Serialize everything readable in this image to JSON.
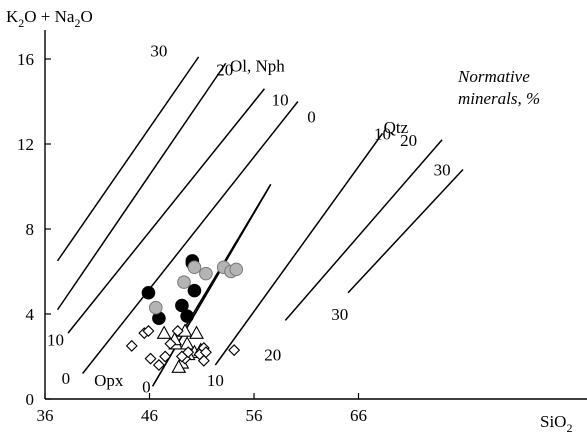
{
  "chart_data": {
    "type": "scatter",
    "title": "",
    "xlabel": "SiO",
    "xlabel_sub": "2",
    "ylabel_parts": [
      "K",
      "2",
      "O + Na",
      "2",
      "O"
    ],
    "xlim": [
      36,
      76
    ],
    "ylim": [
      0,
      17.5
    ],
    "x_ticks": [
      36,
      46,
      56,
      66
    ],
    "y_ticks": [
      0,
      4,
      8,
      12,
      16
    ],
    "grid": false,
    "legend": {
      "title_lines": [
        "Normative",
        "minerals, %"
      ],
      "placement": "top-right"
    },
    "field_labels": [
      {
        "text": "Ol, Nph",
        "x": 53.7,
        "y": 15.7
      },
      {
        "text": "Qtz",
        "x": 68.4,
        "y": 12.8
      },
      {
        "text": "Opx",
        "x": 40.7,
        "y": 0.9
      }
    ],
    "isolines": [
      {
        "label": "30",
        "group": "Ol-Nph",
        "from": [
          37.2,
          6.5
        ],
        "to": [
          50.7,
          16.1
        ],
        "label_at": [
          46.9,
          16.4
        ]
      },
      {
        "label": "20",
        "group": "Ol-Nph",
        "from": [
          37.2,
          4.2
        ],
        "to": [
          53.3,
          15.8
        ],
        "label_at": [
          53.2,
          15.5
        ]
      },
      {
        "label": "10",
        "group": "Ol-Nph",
        "from": [
          38.2,
          3.1
        ],
        "to": [
          57.0,
          14.6
        ],
        "label_at": [
          58.5,
          14.1
        ]
      },
      {
        "label": "0",
        "group": "Ol-Nph",
        "from": [
          39.6,
          1.2
        ],
        "to": [
          60.2,
          14.0
        ],
        "label_at": [
          61.5,
          13.3
        ]
      },
      {
        "label": "0",
        "group": "Opx-Qtz",
        "from": [
          46.3,
          0.6
        ],
        "to": [
          57.6,
          10.1
        ],
        "label_at": [
          45.7,
          0.6
        ]
      },
      {
        "label": "10",
        "group": "Opx-Qtz",
        "from": [
          52.3,
          1.6
        ],
        "to": [
          68.3,
          12.5
        ],
        "label_at": [
          52.3,
          0.9
        ]
      },
      {
        "label": "20",
        "group": "Opx-Qtz",
        "from": [
          59.0,
          3.7
        ],
        "to": [
          74.0,
          12.2
        ],
        "label_at": [
          57.8,
          2.1
        ]
      },
      {
        "label": "30",
        "group": "Opx-Qtz",
        "from": [
          65.0,
          5.0
        ],
        "to": [
          76.0,
          10.8
        ],
        "label_at": [
          64.2,
          4.0
        ]
      }
    ],
    "extra_labels": [
      {
        "text": "10",
        "x": 37.0,
        "y": 2.8
      },
      {
        "text": "0",
        "x": 38.0,
        "y": 1.0
      },
      {
        "text": "10",
        "x": 68.3,
        "y": 12.5
      },
      {
        "text": "20",
        "x": 70.8,
        "y": 12.2
      },
      {
        "text": "30",
        "x": 74.0,
        "y": 10.8
      }
    ],
    "boundary": [
      [
        46.3,
        0.6
      ],
      [
        57.6,
        10.1
      ],
      [
        49.3,
        3.3
      ]
    ],
    "series": [
      {
        "marker": "filled-circle",
        "color": "#000000",
        "points": [
          [
            45.9,
            5.0
          ],
          [
            46.9,
            3.8
          ],
          [
            49.1,
            4.4
          ],
          [
            49.6,
            3.9
          ],
          [
            50.1,
            6.4
          ],
          [
            50.3,
            5.1
          ],
          [
            50.1,
            6.5
          ]
        ]
      },
      {
        "marker": "gray-circle",
        "color": "#b4b4b4",
        "points": [
          [
            46.6,
            4.3
          ],
          [
            49.3,
            5.5
          ],
          [
            50.3,
            6.2
          ],
          [
            51.4,
            5.9
          ],
          [
            53.1,
            6.2
          ],
          [
            53.8,
            6.0
          ],
          [
            54.3,
            6.1
          ]
        ]
      },
      {
        "marker": "open-triangle",
        "color": "#000000",
        "points": [
          [
            47.4,
            3.1
          ],
          [
            48.5,
            2.6
          ],
          [
            49.4,
            3.2
          ],
          [
            49.6,
            2.6
          ],
          [
            50.5,
            3.1
          ],
          [
            50.3,
            2.2
          ],
          [
            50.9,
            2.3
          ],
          [
            49.1,
            1.7
          ],
          [
            49.7,
            2.1
          ],
          [
            48.8,
            1.5
          ],
          [
            48.4,
            2.8
          ]
        ]
      },
      {
        "marker": "open-diamond",
        "color": "#000000",
        "points": [
          [
            44.3,
            2.5
          ],
          [
            45.5,
            3.1
          ],
          [
            45.9,
            3.2
          ],
          [
            46.1,
            1.9
          ],
          [
            46.9,
            1.6
          ],
          [
            47.5,
            2.0
          ],
          [
            48.0,
            2.6
          ],
          [
            48.7,
            3.2
          ],
          [
            49.4,
            1.9
          ],
          [
            49.7,
            2.2
          ],
          [
            49.1,
            2.0
          ],
          [
            50.8,
            2.1
          ],
          [
            51.2,
            2.4
          ],
          [
            51.4,
            2.2
          ],
          [
            51.2,
            1.8
          ],
          [
            54.1,
            2.3
          ]
        ]
      }
    ]
  }
}
